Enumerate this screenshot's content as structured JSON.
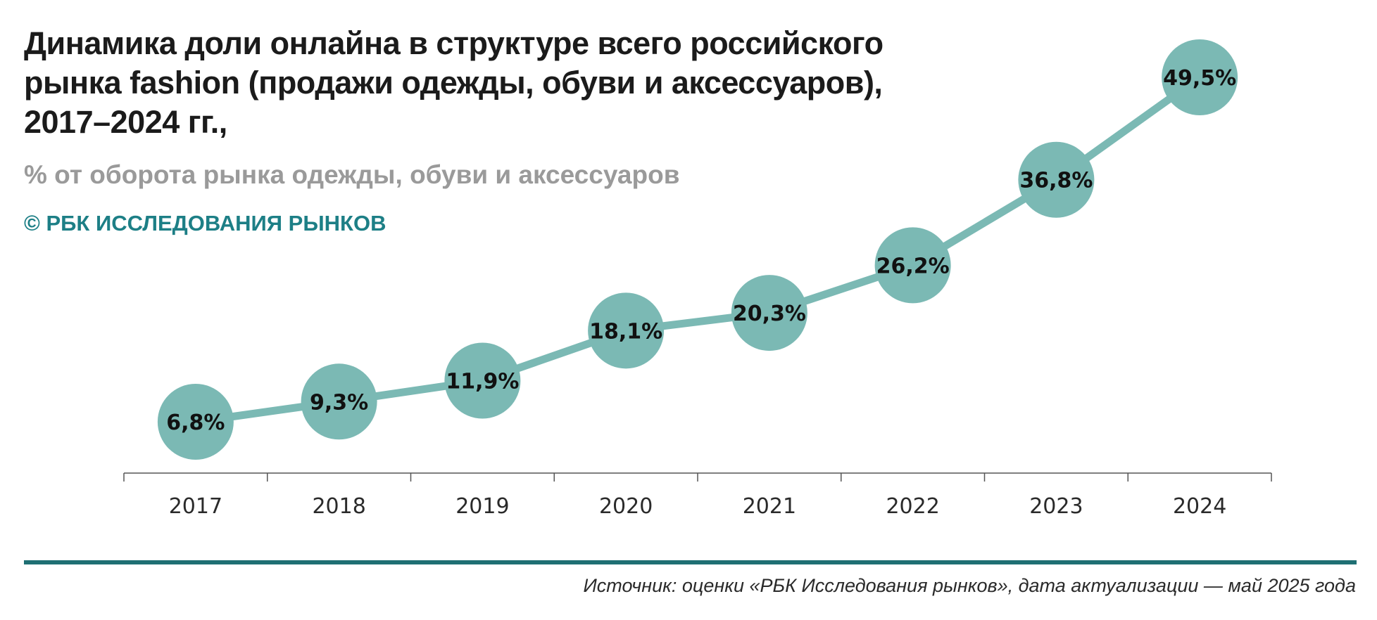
{
  "header": {
    "title": "Динамика доли онлайна в структуре всего российского рынка fashion (продажи одежды, обуви и аксессуаров), 2017–2024 гг.,",
    "subtitle": "% от оборота рынка одежды, обуви и аксессуаров",
    "copyright": "© РБК ИССЛЕДОВАНИЯ РЫНКОВ"
  },
  "footer": {
    "source": "Источник: оценки «РБК Исследования рынков», дата актуализации — май 2025 года"
  },
  "colors": {
    "series": "#7bb9b4",
    "accent": "#1f6f73",
    "brand_text": "#1d7f86",
    "subtitle_text": "#9a9a9a",
    "axis": "#555555"
  },
  "chart_data": {
    "type": "line",
    "categories": [
      "2017",
      "2018",
      "2019",
      "2020",
      "2021",
      "2022",
      "2023",
      "2024"
    ],
    "values": [
      6.8,
      9.3,
      11.9,
      18.1,
      20.3,
      26.2,
      36.8,
      49.5
    ],
    "value_labels": [
      "6,8%",
      "9,3%",
      "11,9%",
      "18,1%",
      "20,3%",
      "26,2%",
      "36,8%",
      "49,5%"
    ],
    "ylim": [
      0,
      52
    ],
    "xlabel": "",
    "ylabel": "",
    "grid": false,
    "legend": "none"
  }
}
